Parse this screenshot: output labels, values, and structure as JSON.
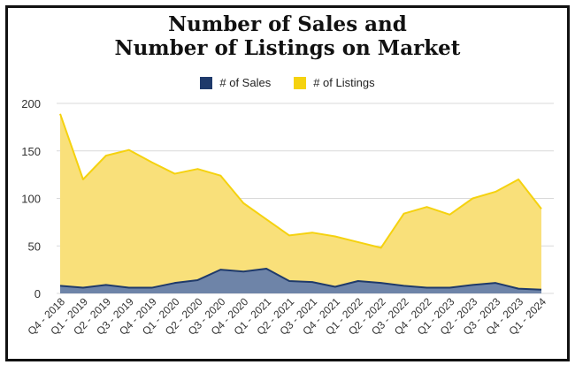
{
  "chart_data": {
    "type": "area",
    "title_lines": [
      "Number of Sales and",
      "Number of Listings on Market"
    ],
    "categories": [
      "Q4 - 2018",
      "Q1 - 2019",
      "Q2 - 2019",
      "Q3 - 2019",
      "Q4 - 2019",
      "Q1 - 2020",
      "Q2 - 2020",
      "Q3 - 2020",
      "Q4 - 2020",
      "Q1 - 2021",
      "Q2 - 2021",
      "Q3 - 2021",
      "Q4 - 2021",
      "Q1 - 2022",
      "Q2 - 2022",
      "Q3 - 2022",
      "Q4 - 2022",
      "Q1 - 2023",
      "Q2 - 2023",
      "Q3 - 2023",
      "Q4 - 2023",
      "Q1 - 2024"
    ],
    "series": [
      {
        "name": "# of Listings",
        "color": "#f9e07a",
        "line_color": "#f5d20f",
        "values": [
          189,
          120,
          145,
          151,
          138,
          126,
          131,
          124,
          95,
          78,
          61,
          64,
          60,
          54,
          48,
          84,
          91,
          83,
          100,
          107,
          120,
          89
        ]
      },
      {
        "name": "# of Sales",
        "color": "#6e84a8",
        "line_color": "#1f3a6b",
        "values": [
          8,
          6,
          9,
          6,
          6,
          11,
          14,
          25,
          23,
          26,
          13,
          12,
          7,
          13,
          11,
          8,
          6,
          6,
          9,
          11,
          5,
          4
        ]
      }
    ],
    "legend": [
      {
        "label": "# of Sales",
        "color": "#1f3a6b"
      },
      {
        "label": "# of Listings",
        "color": "#f5d20f"
      }
    ],
    "y_ticks": [
      0,
      50,
      100,
      150,
      200
    ],
    "ylim": [
      0,
      200
    ],
    "grid": true,
    "legend_position": "top-center"
  }
}
